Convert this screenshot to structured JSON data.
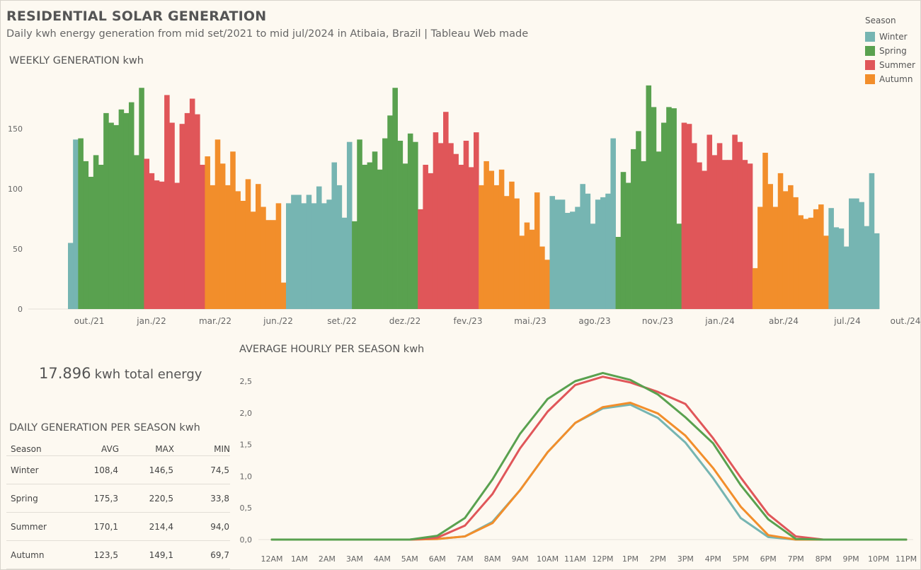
{
  "header": {
    "title": "RESIDENTIAL SOLAR GENERATION",
    "subtitle": "Daily kwh energy generation from mid set/2021 to mid jul/2024 in Atibaia, Brazil | Tableau Web made"
  },
  "legend": {
    "title": "Season",
    "items": [
      {
        "label": "Winter",
        "color": "#76b5b2"
      },
      {
        "label": "Spring",
        "color": "#59a14f"
      },
      {
        "label": "Summer",
        "color": "#e05659"
      },
      {
        "label": "Autumn",
        "color": "#f28e2b"
      }
    ]
  },
  "sections": {
    "weekly": "WEEKLY GENERATION kwh",
    "hourly": "AVERAGE HOURLY PER SEASON kwh",
    "daily": "DAILY GENERATION PER SEASON kwh"
  },
  "total": {
    "value": "17.896",
    "unit": "kwh total energy"
  },
  "daily_table": {
    "headers": [
      "Season",
      "AVG",
      "MAX",
      "MIN"
    ],
    "rows": [
      [
        "Winter",
        "108,4",
        "146,5",
        "74,5"
      ],
      [
        "Spring",
        "175,3",
        "220,5",
        "33,8"
      ],
      [
        "Summer",
        "170,1",
        "214,4",
        "94,0"
      ],
      [
        "Autumn",
        "123,5",
        "149,1",
        "69,7"
      ]
    ]
  },
  "chart_data": [
    {
      "type": "bar",
      "title": "WEEKLY GENERATION kwh",
      "x_tick_labels": [
        "out./21",
        "jan./22",
        "mar./22",
        "jun./22",
        "set./22",
        "dez./22",
        "fev./23",
        "mai./23",
        "ago./23",
        "nov./23",
        "jan./24",
        "abr./24",
        "jul./24",
        "out./24"
      ],
      "y_ticks": [
        "0",
        "50",
        "100",
        "150"
      ],
      "ylim": [
        0,
        195
      ],
      "season_order": [
        "Winter",
        "Spring",
        "Summer",
        "Autumn"
      ],
      "bars": [
        [
          "Winter",
          55
        ],
        [
          "Winter",
          141
        ],
        [
          "Spring",
          142
        ],
        [
          "Spring",
          123
        ],
        [
          "Spring",
          110
        ],
        [
          "Spring",
          128
        ],
        [
          "Spring",
          120
        ],
        [
          "Spring",
          163
        ],
        [
          "Spring",
          155
        ],
        [
          "Spring",
          153
        ],
        [
          "Spring",
          166
        ],
        [
          "Spring",
          163
        ],
        [
          "Spring",
          172
        ],
        [
          "Spring",
          128
        ],
        [
          "Spring",
          184
        ],
        [
          "Summer",
          125
        ],
        [
          "Summer",
          113
        ],
        [
          "Summer",
          107
        ],
        [
          "Summer",
          106
        ],
        [
          "Summer",
          178
        ],
        [
          "Summer",
          155
        ],
        [
          "Summer",
          105
        ],
        [
          "Summer",
          154
        ],
        [
          "Summer",
          163
        ],
        [
          "Summer",
          175
        ],
        [
          "Summer",
          162
        ],
        [
          "Summer",
          120
        ],
        [
          "Autumn",
          127
        ],
        [
          "Autumn",
          103
        ],
        [
          "Autumn",
          141
        ],
        [
          "Autumn",
          121
        ],
        [
          "Autumn",
          103
        ],
        [
          "Autumn",
          131
        ],
        [
          "Autumn",
          98
        ],
        [
          "Autumn",
          90
        ],
        [
          "Autumn",
          108
        ],
        [
          "Autumn",
          81
        ],
        [
          "Autumn",
          104
        ],
        [
          "Autumn",
          85
        ],
        [
          "Autumn",
          74
        ],
        [
          "Autumn",
          74
        ],
        [
          "Autumn",
          88
        ],
        [
          "Autumn",
          22
        ],
        [
          "Winter",
          88
        ],
        [
          "Winter",
          95
        ],
        [
          "Winter",
          95
        ],
        [
          "Winter",
          88
        ],
        [
          "Winter",
          95
        ],
        [
          "Winter",
          88
        ],
        [
          "Winter",
          102
        ],
        [
          "Winter",
          88
        ],
        [
          "Winter",
          91
        ],
        [
          "Winter",
          122
        ],
        [
          "Winter",
          103
        ],
        [
          "Winter",
          76
        ],
        [
          "Winter",
          139
        ],
        [
          "Spring",
          73
        ],
        [
          "Spring",
          141
        ],
        [
          "Spring",
          120
        ],
        [
          "Spring",
          122
        ],
        [
          "Spring",
          131
        ],
        [
          "Spring",
          116
        ],
        [
          "Spring",
          142
        ],
        [
          "Spring",
          161
        ],
        [
          "Spring",
          184
        ],
        [
          "Spring",
          140
        ],
        [
          "Spring",
          121
        ],
        [
          "Spring",
          146
        ],
        [
          "Spring",
          139
        ],
        [
          "Summer",
          83
        ],
        [
          "Summer",
          120
        ],
        [
          "Summer",
          113
        ],
        [
          "Summer",
          147
        ],
        [
          "Summer",
          138
        ],
        [
          "Summer",
          164
        ],
        [
          "Summer",
          138
        ],
        [
          "Summer",
          129
        ],
        [
          "Summer",
          120
        ],
        [
          "Summer",
          140
        ],
        [
          "Summer",
          118
        ],
        [
          "Summer",
          147
        ],
        [
          "Autumn",
          103
        ],
        [
          "Autumn",
          123
        ],
        [
          "Autumn",
          115
        ],
        [
          "Autumn",
          103
        ],
        [
          "Autumn",
          116
        ],
        [
          "Autumn",
          94
        ],
        [
          "Autumn",
          106
        ],
        [
          "Autumn",
          92
        ],
        [
          "Autumn",
          61
        ],
        [
          "Autumn",
          72
        ],
        [
          "Autumn",
          66
        ],
        [
          "Autumn",
          97
        ],
        [
          "Autumn",
          52
        ],
        [
          "Autumn",
          41
        ],
        [
          "Winter",
          94
        ],
        [
          "Winter",
          91
        ],
        [
          "Winter",
          91
        ],
        [
          "Winter",
          80
        ],
        [
          "Winter",
          81
        ],
        [
          "Winter",
          85
        ],
        [
          "Winter",
          104
        ],
        [
          "Winter",
          96
        ],
        [
          "Winter",
          71
        ],
        [
          "Winter",
          91
        ],
        [
          "Winter",
          93
        ],
        [
          "Winter",
          96
        ],
        [
          "Winter",
          142
        ],
        [
          "Spring",
          60
        ],
        [
          "Spring",
          114
        ],
        [
          "Spring",
          105
        ],
        [
          "Spring",
          133
        ],
        [
          "Spring",
          148
        ],
        [
          "Spring",
          123
        ],
        [
          "Spring",
          186
        ],
        [
          "Spring",
          168
        ],
        [
          "Spring",
          131
        ],
        [
          "Spring",
          155
        ],
        [
          "Spring",
          168
        ],
        [
          "Spring",
          167
        ],
        [
          "Spring",
          71
        ],
        [
          "Summer",
          155
        ],
        [
          "Summer",
          154
        ],
        [
          "Summer",
          138
        ],
        [
          "Summer",
          122
        ],
        [
          "Summer",
          115
        ],
        [
          "Summer",
          145
        ],
        [
          "Summer",
          128
        ],
        [
          "Summer",
          138
        ],
        [
          "Summer",
          124
        ],
        [
          "Summer",
          124
        ],
        [
          "Summer",
          145
        ],
        [
          "Summer",
          139
        ],
        [
          "Summer",
          124
        ],
        [
          "Summer",
          121
        ],
        [
          "Autumn",
          34
        ],
        [
          "Autumn",
          85
        ],
        [
          "Autumn",
          130
        ],
        [
          "Autumn",
          104
        ],
        [
          "Autumn",
          85
        ],
        [
          "Autumn",
          113
        ],
        [
          "Autumn",
          98
        ],
        [
          "Autumn",
          103
        ],
        [
          "Autumn",
          93
        ],
        [
          "Autumn",
          78
        ],
        [
          "Autumn",
          75
        ],
        [
          "Autumn",
          76
        ],
        [
          "Autumn",
          83
        ],
        [
          "Autumn",
          87
        ],
        [
          "Autumn",
          61
        ],
        [
          "Winter",
          84
        ],
        [
          "Winter",
          68
        ],
        [
          "Winter",
          67
        ],
        [
          "Winter",
          52
        ],
        [
          "Winter",
          92
        ],
        [
          "Winter",
          92
        ],
        [
          "Winter",
          89
        ],
        [
          "Winter",
          69
        ],
        [
          "Winter",
          113
        ],
        [
          "Winter",
          63
        ]
      ]
    },
    {
      "type": "line",
      "title": "AVERAGE HOURLY PER SEASON kwh",
      "x": [
        "12AM",
        "1AM",
        "2AM",
        "3AM",
        "4AM",
        "5AM",
        "6AM",
        "7AM",
        "8AM",
        "9AM",
        "10AM",
        "11AM",
        "12PM",
        "1PM",
        "2PM",
        "3PM",
        "4PM",
        "5PM",
        "6PM",
        "7PM",
        "8PM",
        "9PM",
        "10PM",
        "11PM"
      ],
      "y_ticks": [
        "0,0",
        "0,5",
        "1,0",
        "1,5",
        "2,0",
        "2,5"
      ],
      "ylim": [
        0,
        2.7
      ],
      "series": [
        {
          "name": "Winter",
          "color": "#76b5b2",
          "values": [
            0,
            0,
            0,
            0,
            0,
            0,
            0.01,
            0.05,
            0.28,
            0.78,
            1.38,
            1.84,
            2.07,
            2.13,
            1.92,
            1.53,
            0.97,
            0.34,
            0.04,
            0,
            0,
            0,
            0,
            0
          ]
        },
        {
          "name": "Autumn",
          "color": "#f28e2b",
          "values": [
            0,
            0,
            0,
            0,
            0,
            0,
            0.01,
            0.05,
            0.26,
            0.78,
            1.38,
            1.84,
            2.09,
            2.16,
            1.99,
            1.64,
            1.13,
            0.52,
            0.07,
            0,
            0,
            0,
            0,
            0
          ]
        },
        {
          "name": "Summer",
          "color": "#e05659",
          "values": [
            0,
            0,
            0,
            0,
            0,
            0,
            0.03,
            0.22,
            0.72,
            1.44,
            2.02,
            2.44,
            2.57,
            2.48,
            2.33,
            2.14,
            1.6,
            0.98,
            0.4,
            0.05,
            0,
            0,
            0,
            0
          ]
        },
        {
          "name": "Spring",
          "color": "#59a14f",
          "values": [
            0,
            0,
            0,
            0,
            0,
            0,
            0.06,
            0.34,
            0.95,
            1.67,
            2.22,
            2.5,
            2.63,
            2.52,
            2.29,
            1.93,
            1.52,
            0.86,
            0.32,
            0.01,
            0,
            0,
            0,
            0
          ]
        }
      ]
    }
  ]
}
